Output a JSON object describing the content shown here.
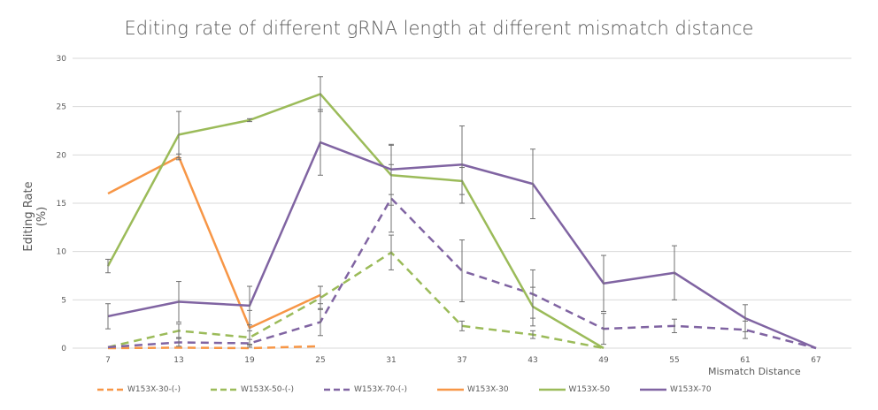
{
  "chart_data": {
    "type": "line",
    "title": "Editing rate of different gRNA length at different mismatch distance",
    "xlabel": "Mismatch Distance",
    "ylabel": "Editing Rate (%)",
    "categories": [
      "7",
      "13",
      "19",
      "25",
      "31",
      "37",
      "43",
      "49",
      "55",
      "61",
      "67"
    ],
    "ylim": [
      0,
      30
    ],
    "yticks": [
      0,
      5,
      10,
      15,
      20,
      25,
      30
    ],
    "grid": true,
    "legend": "bottom",
    "series": [
      {
        "name": "W153X-30-(-)",
        "color": "#f79646",
        "dash": true,
        "values": [
          0,
          0.05,
          0,
          0.2,
          null,
          null,
          null,
          null,
          null,
          null,
          null
        ],
        "errors": [
          0,
          0,
          0,
          0,
          null,
          null,
          null,
          null,
          null,
          null,
          null
        ]
      },
      {
        "name": "W153X-50-(-)",
        "color": "#9bbb59",
        "dash": true,
        "values": [
          0.1,
          1.8,
          1.1,
          5.2,
          9.9,
          2.3,
          1.4,
          0,
          null,
          null,
          null
        ],
        "errors": [
          0,
          0.7,
          0.7,
          1.2,
          1.8,
          0.5,
          0.4,
          0,
          null,
          null,
          null
        ]
      },
      {
        "name": "W153X-70-(-)",
        "color": "#8064a2",
        "dash": true,
        "values": [
          0.1,
          0.6,
          0.5,
          2.7,
          15.5,
          8.0,
          5.6,
          2.0,
          2.3,
          1.9,
          0
        ],
        "errors": [
          0,
          0.4,
          0.4,
          1.4,
          3.5,
          3.2,
          2.5,
          1.6,
          0.7,
          0.9,
          0
        ]
      },
      {
        "name": "W153X-30",
        "color": "#f79646",
        "dash": false,
        "values": [
          16.0,
          19.8,
          2.1,
          5.5,
          null,
          null,
          null,
          null,
          null,
          null,
          null
        ],
        "errors": [
          0,
          0.3,
          1.8,
          0.9,
          null,
          null,
          null,
          null,
          null,
          null,
          null
        ]
      },
      {
        "name": "W153X-50",
        "color": "#9bbb59",
        "dash": false,
        "values": [
          8.5,
          22.1,
          23.6,
          26.3,
          17.9,
          17.3,
          4.3,
          0,
          null,
          null,
          null
        ],
        "errors": [
          0.7,
          2.4,
          0.15,
          1.8,
          3.1,
          1.4,
          2.0,
          0,
          null,
          null,
          null
        ]
      },
      {
        "name": "W153X-70",
        "color": "#8064a2",
        "dash": false,
        "values": [
          3.3,
          4.8,
          4.4,
          21.3,
          18.5,
          19.0,
          17.0,
          6.7,
          7.8,
          3.1,
          0
        ],
        "errors": [
          1.3,
          2.1,
          2.0,
          3.4,
          2.6,
          4.0,
          3.6,
          2.9,
          2.8,
          1.4,
          0
        ]
      }
    ]
  }
}
